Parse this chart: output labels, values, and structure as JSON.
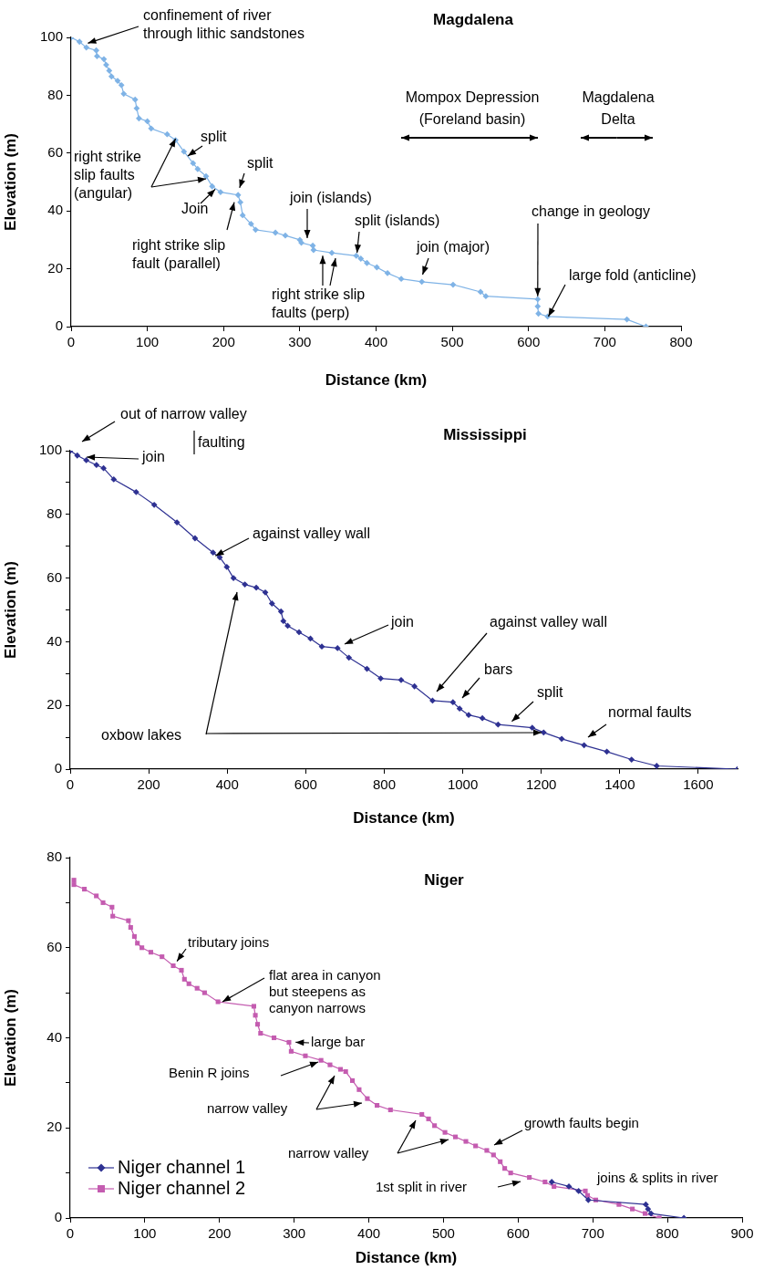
{
  "chart_data": [
    {
      "type": "line",
      "title": "Magdalena",
      "xlabel": "Distance (km)",
      "ylabel": "Elevation (m)",
      "marker": "diamond",
      "xlim": [
        0,
        800
      ],
      "xticks": [
        0,
        100,
        200,
        300,
        400,
        500,
        600,
        700,
        800
      ],
      "ylim": [
        0,
        100
      ],
      "yticks": [
        0,
        20,
        40,
        60,
        80,
        100
      ],
      "series": [
        {
          "color": "#7fb3e6",
          "x": [
            0,
            11,
            20,
            33,
            34,
            43,
            46,
            50,
            53,
            61,
            66,
            69,
            84,
            86,
            89,
            100,
            105,
            126,
            137,
            148,
            160,
            166,
            177,
            185,
            196,
            219,
            222,
            225,
            236,
            242,
            268,
            281,
            300,
            302,
            317,
            318,
            342,
            374,
            380,
            388,
            401,
            415,
            433,
            460,
            501,
            537,
            544,
            612,
            612,
            613,
            625,
            729,
            754
          ],
          "values": [
            100,
            98.5,
            96.5,
            95.5,
            93.5,
            92.5,
            90.5,
            88.5,
            86.5,
            85,
            83.5,
            80.5,
            78.5,
            75.5,
            72,
            71,
            68.5,
            66.5,
            64.5,
            60.5,
            56.5,
            54.5,
            52,
            48.5,
            46.5,
            45.5,
            43,
            38.5,
            35.5,
            33.5,
            32.5,
            31.5,
            30,
            29,
            28,
            26.5,
            25.5,
            24.5,
            23.5,
            22,
            20.5,
            18.5,
            16.5,
            15.5,
            14.5,
            12,
            10.5,
            9.5,
            7,
            4.5,
            3.5,
            2.5,
            0
          ]
        }
      ],
      "annotations": [
        {
          "text": "confinement of river\nthrough lithic sandstones",
          "x": 22,
          "y": 98
        },
        {
          "text": "split",
          "x": 153,
          "y": 59
        },
        {
          "text": "split",
          "x": 221,
          "y": 48
        },
        {
          "text": "right strike\nslip faults\n(angular)",
          "x": 137,
          "y": 65
        },
        {
          "text": "Join",
          "x": 189,
          "y": 47.5
        },
        {
          "text": "right strike slip\nfault (parallel)",
          "x": 214,
          "y": 43
        },
        "join (islands)",
        {
          "text": "split (islands)",
          "x": 375,
          "y": 25.5
        },
        {
          "text": "right strike slip\nfaults (perp)",
          "x": 330,
          "y": 24.5
        },
        {
          "text": "join (major)",
          "x": 461,
          "y": 18
        },
        {
          "text": "change in geology",
          "x": 612,
          "y": 10.5
        },
        {
          "text": "large fold (anticline)",
          "x": 626,
          "y": 3.5
        },
        "Mompox Depression\n(Foreland basin)",
        "Magdalena\nDelta"
      ]
    },
    {
      "type": "line",
      "title": "Mississippi",
      "xlabel": "Distance (km)",
      "ylabel": "Elevation (m)",
      "marker": "diamond",
      "xlim": [
        0,
        1700
      ],
      "xticks": [
        0,
        200,
        400,
        600,
        800,
        1000,
        1200,
        1400,
        1600
      ],
      "ylim": [
        0,
        100
      ],
      "yticks": [
        0,
        {
          "value": 10,
          "label": null
        },
        20,
        {
          "value": 30,
          "label": null
        },
        40,
        {
          "value": 50,
          "label": null
        },
        60,
        {
          "value": 70,
          "label": null
        },
        80,
        {
          "value": 90,
          "label": null
        },
        100
      ],
      "series": [
        {
          "color": "#2e3192",
          "x": [
            0,
            18,
            41,
            67,
            85,
            111,
            168,
            214,
            272,
            318,
            364,
            381,
            399,
            416,
            445,
            474,
            497,
            514,
            537,
            543,
            554,
            583,
            612,
            641,
            681,
            710,
            756,
            791,
            843,
            877,
            923,
            975,
            992,
            1015,
            1050,
            1090,
            1177,
            1206,
            1252,
            1309,
            1367,
            1430,
            1494,
            1700
          ],
          "values": [
            100,
            98.5,
            97,
            95.5,
            94.5,
            91,
            87,
            83,
            77.5,
            72.5,
            68,
            66.5,
            63.5,
            60,
            58,
            57,
            55.5,
            52,
            49.5,
            46.5,
            45,
            43,
            41,
            38.5,
            38,
            35,
            31.5,
            28.5,
            28,
            26,
            21.5,
            21,
            19,
            17,
            16,
            14,
            13,
            11.5,
            9.5,
            7.5,
            5.5,
            3,
            1,
            0
          ]
        }
      ],
      "annotations": [
        "out of narrow valley",
        "faulting",
        {
          "text": "join",
          "x": 42,
          "y": 98
        },
        {
          "text": "against valley wall",
          "x": 370,
          "y": 67
        },
        "oxbow lakes",
        "join",
        "against valley wall",
        "bars",
        {
          "text": "split",
          "x": 1125,
          "y": 15
        },
        "normal faults"
      ]
    },
    {
      "type": "line",
      "title": "Niger",
      "xlabel": "Distance (km)",
      "ylabel": "Elevation (m)",
      "legend": "bottom left",
      "xlim": [
        0,
        900
      ],
      "xticks": [
        0,
        100,
        200,
        300,
        400,
        500,
        600,
        700,
        800,
        900
      ],
      "ylim": [
        0,
        80
      ],
      "yticks": [
        0,
        {
          "value": 10,
          "label": null
        },
        20,
        {
          "value": 30,
          "label": null
        },
        40,
        {
          "value": 50,
          "label": null
        },
        60,
        {
          "value": 70,
          "label": null
        },
        80
      ],
      "series": [
        {
          "name": "Niger channel 1",
          "color": "#2e3192",
          "marker": "diamond",
          "x": [
            645,
            668,
            681,
            694,
            771,
            774,
            778,
            822
          ],
          "values": [
            8,
            7,
            6,
            4,
            3,
            2,
            1,
            0
          ]
        },
        {
          "name": "Niger channel 2",
          "color": "#c45cb0",
          "marker": "square",
          "x": [
            5,
            5,
            19,
            35,
            44,
            56,
            57,
            78,
            81,
            86,
            90,
            96,
            108,
            123,
            138,
            149,
            153,
            159,
            170,
            180,
            198,
            246,
            248,
            251,
            255,
            273,
            293,
            296,
            315,
            336,
            348,
            362,
            369,
            378,
            387,
            398,
            411,
            429,
            471,
            480,
            488,
            502,
            516,
            530,
            543,
            558,
            567,
            576,
            582,
            590,
            615,
            636,
            648,
            690,
            693,
            704,
            735,
            753,
            770,
            789
          ],
          "values": [
            75,
            74,
            73,
            71.5,
            70,
            69,
            67,
            66,
            64.5,
            62.5,
            61,
            60,
            59,
            58,
            56,
            55,
            53,
            52,
            51,
            50,
            48,
            47,
            45,
            43,
            41,
            40,
            39,
            37,
            36,
            35,
            34,
            33,
            32.5,
            30.5,
            28.5,
            26.5,
            25,
            24,
            23,
            22,
            20.5,
            19,
            18,
            17,
            16,
            15,
            14,
            12.5,
            11,
            10,
            9,
            8,
            7,
            6,
            5,
            4,
            3,
            2,
            1,
            0
          ]
        }
      ],
      "annotations": [
        {
          "text": "tributary joins",
          "x": 143,
          "y": 57
        },
        {
          "text": "flat area in canyon\nbut steepens as\ncanyon narrows",
          "x": 204,
          "y": 48
        },
        {
          "text": "large bar",
          "x": 302,
          "y": 39
        },
        "Benin R joins",
        "narrow valley",
        "narrow valley",
        "growth faults begin",
        "1st split in river",
        "joins & splits in river"
      ]
    }
  ]
}
